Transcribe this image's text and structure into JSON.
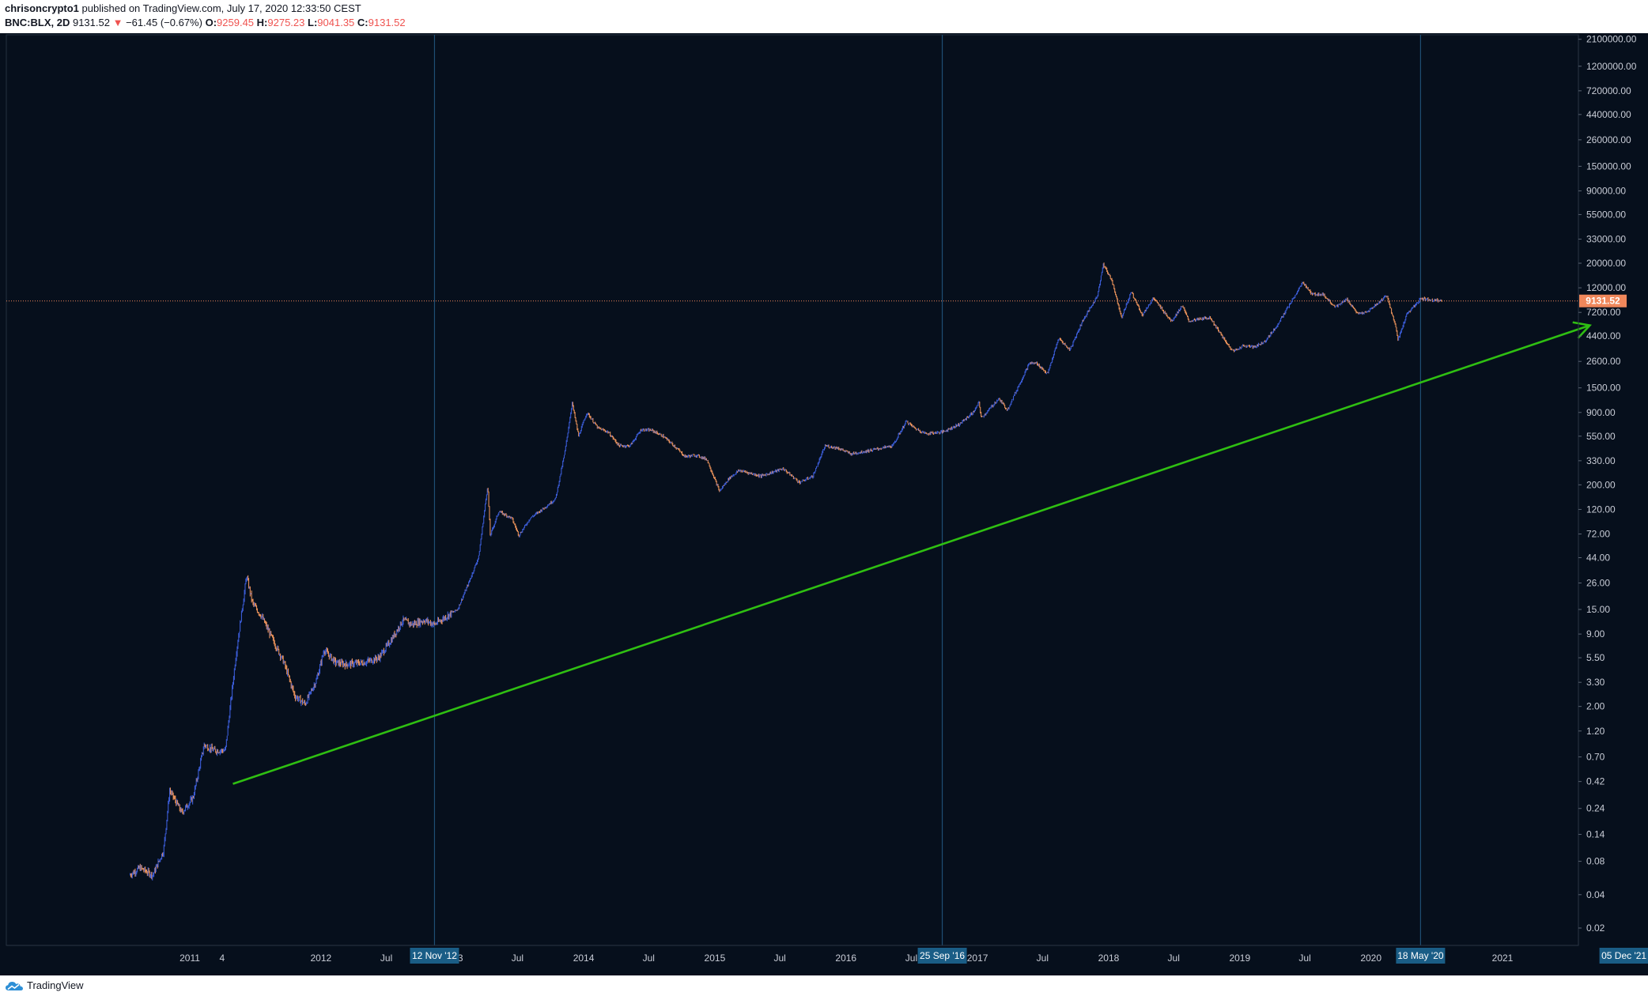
{
  "header": {
    "author": "chrisoncrypto1",
    "published_text": "published on TradingView.com, July 17, 2020 12:33:50 CEST",
    "symbol": "BNC:BLX, 2D",
    "last": "9131.52",
    "change": "−61.45 (−0.67%)",
    "open_label": "O:",
    "open": "9259.45",
    "high_label": "H:",
    "high": "9275.23",
    "low_label": "L:",
    "low": "9041.35",
    "close_label": "C:",
    "close": "9131.52",
    "down_arrow_icon": "triangle-down"
  },
  "footer": {
    "brand": "TradingView",
    "logo_icon": "tradingview-cloud-icon"
  },
  "chart_data": {
    "type": "candlestick",
    "y_scale": "log",
    "y_tick_labels": [
      "2100000.00",
      "1200000.00",
      "720000.00",
      "440000.00",
      "260000.00",
      "150000.00",
      "90000.00",
      "55000.00",
      "33000.00",
      "20000.00",
      "12000.00",
      "7200.00",
      "4400.00",
      "2600.00",
      "1500.00",
      "900.00",
      "550.00",
      "330.00",
      "200.00",
      "120.00",
      "72.00",
      "44.00",
      "26.00",
      "15.00",
      "9.00",
      "5.50",
      "3.30",
      "2.00",
      "1.20",
      "0.70",
      "0.42",
      "0.24",
      "0.14",
      "0.08",
      "0.04",
      "0.02"
    ],
    "y_ticks": [
      2100000,
      1200000,
      720000,
      440000,
      260000,
      150000,
      90000,
      55000,
      33000,
      20000,
      12000,
      7200,
      4400,
      2600,
      1500,
      900,
      550,
      330,
      200,
      120,
      72,
      44,
      26,
      15,
      9,
      5.5,
      3.3,
      2.0,
      1.2,
      0.7,
      0.42,
      0.24,
      0.14,
      0.08,
      0.04,
      0.02
    ],
    "x_tick_labels": [
      "2011",
      "4",
      "2012",
      "Jul",
      "2013",
      "Jul",
      "2014",
      "Jul",
      "2015",
      "Jul",
      "2016",
      "Jul",
      "2017",
      "Jul",
      "2018",
      "Jul",
      "2019",
      "Jul",
      "2020",
      "Jul",
      "2021"
    ],
    "x_tick_dates": [
      "2011-01-01",
      "2011-04-01",
      "2012-01-01",
      "2012-07-01",
      "2013-01-01",
      "2013-07-01",
      "2014-01-01",
      "2014-07-01",
      "2015-01-01",
      "2015-07-01",
      "2016-01-01",
      "2016-07-01",
      "2017-01-01",
      "2017-07-01",
      "2018-01-01",
      "2018-07-01",
      "2019-01-01",
      "2019-07-01",
      "2020-01-01",
      "2020-07-01",
      "2021-01-01"
    ],
    "price_path": [
      [
        "2010-07-17",
        0.06
      ],
      [
        "2010-08-15",
        0.07
      ],
      [
        "2010-09-20",
        0.06
      ],
      [
        "2010-10-20",
        0.1
      ],
      [
        "2010-11-06",
        0.35
      ],
      [
        "2010-12-10",
        0.22
      ],
      [
        "2011-01-10",
        0.3
      ],
      [
        "2011-02-10",
        0.9
      ],
      [
        "2011-03-10",
        0.8
      ],
      [
        "2011-04-10",
        0.8
      ],
      [
        "2011-05-10",
        6
      ],
      [
        "2011-06-08",
        30
      ],
      [
        "2011-06-25",
        17
      ],
      [
        "2011-07-20",
        13
      ],
      [
        "2011-08-20",
        8
      ],
      [
        "2011-09-20",
        5
      ],
      [
        "2011-10-20",
        2.5
      ],
      [
        "2011-11-18",
        2.1
      ],
      [
        "2011-12-20",
        3.5
      ],
      [
        "2012-01-10",
        6.5
      ],
      [
        "2012-02-10",
        5
      ],
      [
        "2012-03-10",
        4.8
      ],
      [
        "2012-05-01",
        5
      ],
      [
        "2012-06-10",
        5.5
      ],
      [
        "2012-07-15",
        8
      ],
      [
        "2012-08-16",
        12
      ],
      [
        "2012-09-10",
        11
      ],
      [
        "2012-10-15",
        12
      ],
      [
        "2012-11-12",
        11
      ],
      [
        "2012-12-15",
        13
      ],
      [
        "2013-01-15",
        15
      ],
      [
        "2013-02-15",
        26
      ],
      [
        "2013-03-15",
        45
      ],
      [
        "2013-04-09",
        200
      ],
      [
        "2013-04-16",
        70
      ],
      [
        "2013-05-10",
        115
      ],
      [
        "2013-06-15",
        100
      ],
      [
        "2013-07-05",
        70
      ],
      [
        "2013-08-05",
        100
      ],
      [
        "2013-09-15",
        125
      ],
      [
        "2013-10-15",
        150
      ],
      [
        "2013-11-10",
        400
      ],
      [
        "2013-11-30",
        1100
      ],
      [
        "2013-12-18",
        550
      ],
      [
        "2014-01-10",
        900
      ],
      [
        "2014-02-10",
        650
      ],
      [
        "2014-03-10",
        600
      ],
      [
        "2014-04-10",
        450
      ],
      [
        "2014-05-10",
        450
      ],
      [
        "2014-06-10",
        630
      ],
      [
        "2014-07-10",
        620
      ],
      [
        "2014-08-10",
        550
      ],
      [
        "2014-09-10",
        450
      ],
      [
        "2014-10-10",
        360
      ],
      [
        "2014-11-10",
        370
      ],
      [
        "2014-12-10",
        340
      ],
      [
        "2015-01-14",
        175
      ],
      [
        "2015-02-10",
        230
      ],
      [
        "2015-03-10",
        270
      ],
      [
        "2015-05-10",
        240
      ],
      [
        "2015-07-10",
        280
      ],
      [
        "2015-08-25",
        210
      ],
      [
        "2015-10-01",
        240
      ],
      [
        "2015-11-04",
        450
      ],
      [
        "2015-12-10",
        430
      ],
      [
        "2016-01-15",
        380
      ],
      [
        "2016-03-10",
        410
      ],
      [
        "2016-05-10",
        450
      ],
      [
        "2016-06-17",
        750
      ],
      [
        "2016-07-10",
        650
      ],
      [
        "2016-08-10",
        580
      ],
      [
        "2016-09-25",
        600
      ],
      [
        "2016-11-10",
        700
      ],
      [
        "2016-12-20",
        900
      ],
      [
        "2017-01-05",
        1100
      ],
      [
        "2017-01-12",
        800
      ],
      [
        "2017-03-01",
        1200
      ],
      [
        "2017-03-25",
        950
      ],
      [
        "2017-05-25",
        2500
      ],
      [
        "2017-06-15",
        2500
      ],
      [
        "2017-07-15",
        2000
      ],
      [
        "2017-08-15",
        4200
      ],
      [
        "2017-09-15",
        3300
      ],
      [
        "2017-10-20",
        6000
      ],
      [
        "2017-11-30",
        10000
      ],
      [
        "2017-12-17",
        19500
      ],
      [
        "2018-01-10",
        14000
      ],
      [
        "2018-02-06",
        6500
      ],
      [
        "2018-03-05",
        11000
      ],
      [
        "2018-04-05",
        6800
      ],
      [
        "2018-05-05",
        9700
      ],
      [
        "2018-06-25",
        6000
      ],
      [
        "2018-07-25",
        8300
      ],
      [
        "2018-08-12",
        6000
      ],
      [
        "2018-10-10",
        6500
      ],
      [
        "2018-11-25",
        3800
      ],
      [
        "2018-12-15",
        3200
      ],
      [
        "2019-01-10",
        3600
      ],
      [
        "2019-02-10",
        3500
      ],
      [
        "2019-03-10",
        3900
      ],
      [
        "2019-04-10",
        5200
      ],
      [
        "2019-05-15",
        8000
      ],
      [
        "2019-06-26",
        13500
      ],
      [
        "2019-07-20",
        10500
      ],
      [
        "2019-08-20",
        10500
      ],
      [
        "2019-09-25",
        8000
      ],
      [
        "2019-10-26",
        9500
      ],
      [
        "2019-11-25",
        7000
      ],
      [
        "2019-12-20",
        7200
      ],
      [
        "2020-01-20",
        8700
      ],
      [
        "2020-02-14",
        10300
      ],
      [
        "2020-03-12",
        5000
      ],
      [
        "2020-03-16",
        4000
      ],
      [
        "2020-04-10",
        7000
      ],
      [
        "2020-05-10",
        8800
      ],
      [
        "2020-05-18",
        9700
      ],
      [
        "2020-06-01",
        9500
      ],
      [
        "2020-07-17",
        9131.52
      ]
    ],
    "last_price": 9131.52,
    "last_price_label": "9131.52",
    "vertical_markers": [
      {
        "date": "2012-11-12",
        "label": "12 Nov '12"
      },
      {
        "date": "2016-09-25",
        "label": "25 Sep '16"
      },
      {
        "date": "2020-05-18",
        "label": "18 May '20"
      }
    ],
    "end_marker": {
      "date": "2021-12-05",
      "label": "05 Dec '21"
    },
    "trend_arrow": {
      "start": {
        "date": "2011-05-01",
        "price": 0.4
      },
      "end": {
        "date": "2021-09-01",
        "price": 5500
      },
      "color": "#2fbf12"
    },
    "colors": {
      "background": "#060f1c",
      "up": "#3b5cd6",
      "down": "#e8915a",
      "axis_text": "#c8ccd6",
      "last_price": "#f0875b",
      "marker_line": "#1f4f74",
      "marker_box": "#1a5d86"
    }
  }
}
